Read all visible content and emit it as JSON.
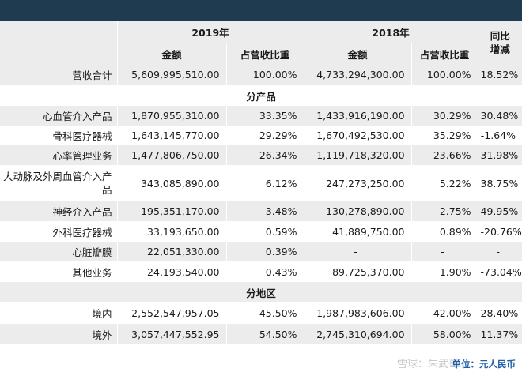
{
  "header": {
    "year_2019": "2019年",
    "year_2018": "2018年",
    "yoy_line1": "同比",
    "yoy_line2": "增减",
    "amount": "金额",
    "share": "占营收比重"
  },
  "total_row": {
    "label": "营收合计",
    "amt2019": "5,609,995,510.00",
    "pct2019": "100.00%",
    "amt2018": "4,733,294,300.00",
    "pct2018": "100.00%",
    "yoy": "18.52%"
  },
  "section_product": "分产品",
  "products": [
    {
      "label": "心血管介入产品",
      "amt2019": "1,870,955,310.00",
      "pct2019": "33.35%",
      "amt2018": "1,433,916,190.00",
      "pct2018": "30.29%",
      "yoy": "30.48%"
    },
    {
      "label": "骨科医疗器械",
      "amt2019": "1,643,145,770.00",
      "pct2019": "29.29%",
      "amt2018": "1,670,492,530.00",
      "pct2018": "35.29%",
      "yoy": "-1.64%"
    },
    {
      "label": "心率管理业务",
      "amt2019": "1,477,806,750.00",
      "pct2019": "26.34%",
      "amt2018": "1,119,718,320.00",
      "pct2018": "23.66%",
      "yoy": "31.98%"
    },
    {
      "label": "大动脉及外周血管介入产品",
      "amt2019": "343,085,890.00",
      "pct2019": "6.12%",
      "amt2018": "247,273,250.00",
      "pct2018": "5.22%",
      "yoy": "38.75%"
    },
    {
      "label": "神经介入产品",
      "amt2019": "195,351,170.00",
      "pct2019": "3.48%",
      "amt2018": "130,278,890.00",
      "pct2018": "2.75%",
      "yoy": "49.95%"
    },
    {
      "label": "外科医疗器械",
      "amt2019": "33,193,650.00",
      "pct2019": "0.59%",
      "amt2018": "41,889,750.00",
      "pct2018": "0.89%",
      "yoy": "-20.76%"
    },
    {
      "label": "心脏瓣膜",
      "amt2019": "22,051,330.00",
      "pct2019": "0.39%",
      "amt2018": "-",
      "pct2018": "-",
      "yoy": "-"
    },
    {
      "label": "其他业务",
      "amt2019": "24,193,540.00",
      "pct2019": "0.43%",
      "amt2018": "89,725,370.00",
      "pct2018": "1.90%",
      "yoy": "-73.04%"
    }
  ],
  "section_region": "分地区",
  "regions": [
    {
      "label": "境内",
      "amt2019": "2,552,547,957.05",
      "pct2019": "45.50%",
      "amt2018": "1,987,983,606.00",
      "pct2018": "42.00%",
      "yoy": "28.40%"
    },
    {
      "label": "境外",
      "amt2019": "3,057,447,552.95",
      "pct2019": "54.50%",
      "amt2018": "2,745,310,694.00",
      "pct2018": "58.00%",
      "yoy": "11.37%"
    }
  ],
  "footer_unit": "单位：元人民币",
  "watermark": "雪球：朱武哥"
}
